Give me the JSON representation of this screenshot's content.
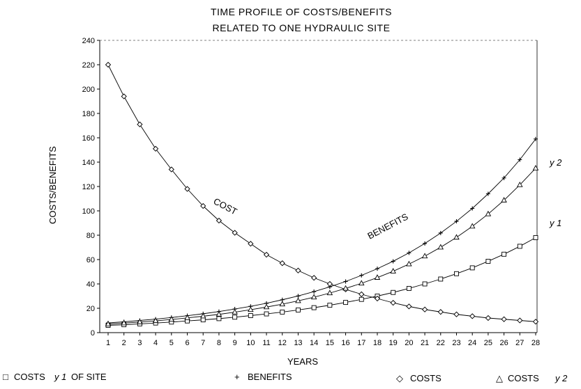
{
  "chart_data": {
    "type": "line",
    "title": [
      "TIME PROFILE OF COSTS/BENEFITS",
      "RELATED TO ONE HYDRAULIC SITE"
    ],
    "xlabel": "YEARS",
    "ylabel": "COSTS/BENEFITS",
    "xlim": [
      1,
      28
    ],
    "ylim": [
      0,
      240
    ],
    "x": [
      1,
      2,
      3,
      4,
      5,
      6,
      7,
      8,
      9,
      10,
      11,
      12,
      13,
      14,
      15,
      16,
      17,
      18,
      19,
      20,
      21,
      22,
      23,
      24,
      25,
      26,
      27,
      28
    ],
    "x_ticks": [
      "1",
      "2",
      "3",
      "4",
      "5",
      "6",
      "7",
      "8",
      "9",
      "10",
      "11",
      "12",
      "13",
      "14",
      "15",
      "16",
      "17",
      "18",
      "19",
      "20",
      "21",
      "22",
      "23",
      "24",
      "25",
      "26",
      "27",
      "28"
    ],
    "y_ticks": [
      "0",
      "20",
      "40",
      "60",
      "80",
      "100",
      "120",
      "140",
      "160",
      "180",
      "200",
      "220",
      "240"
    ],
    "y_tick_values": [
      0,
      20,
      40,
      60,
      80,
      100,
      120,
      140,
      160,
      180,
      200,
      220,
      240
    ],
    "grid": false,
    "legend_position": "bottom",
    "series": [
      {
        "name": "COSTS y 1 OF SITE",
        "marker": "square",
        "values": [
          6,
          6.5,
          7.2,
          7.9,
          8.7,
          9.6,
          10.5,
          11.5,
          12.7,
          14,
          15.4,
          16.9,
          18.6,
          20.5,
          22.5,
          24.8,
          27.3,
          30,
          33,
          36.3,
          40,
          44,
          48.4,
          53.2,
          58.6,
          64.4,
          70.9,
          78
        ]
      },
      {
        "name": "BENEFITS",
        "marker": "plus",
        "values": [
          8,
          8.9,
          10,
          11.1,
          12.4,
          13.9,
          15.5,
          17.3,
          19.4,
          21.6,
          24.1,
          27,
          30.1,
          33.7,
          37.6,
          42,
          47,
          52.5,
          58.6,
          65.5,
          73.2,
          81.8,
          91.4,
          102,
          114,
          127,
          142,
          159
        ]
      },
      {
        "name": "COSTS",
        "marker": "diamond",
        "values": [
          220,
          194,
          171,
          151,
          134,
          118,
          104,
          92,
          82,
          73,
          64,
          57,
          51,
          45,
          40,
          35.5,
          31.5,
          28,
          24.5,
          21.5,
          19,
          17,
          15,
          13.5,
          12,
          11,
          10,
          9
        ]
      },
      {
        "name": "COSTS y 2",
        "marker": "triangle",
        "values": [
          7,
          7.8,
          8.7,
          9.7,
          10.8,
          12.1,
          13.5,
          15,
          16.8,
          18.8,
          21,
          23.4,
          26.1,
          29.1,
          32.5,
          36.3,
          40.5,
          45.2,
          50.4,
          56.3,
          62.8,
          70.1,
          78.2,
          87.3,
          97.4,
          108.7,
          121.3,
          135
        ]
      }
    ],
    "annotations": [
      {
        "text": "COST",
        "series": "COSTS"
      },
      {
        "text": "BENEFITS",
        "series": "BENEFITS"
      },
      {
        "text": "y 2",
        "series": "COSTS y 2"
      },
      {
        "text": "y 1",
        "series": "COSTS y 1 OF SITE"
      }
    ],
    "legend": [
      {
        "symbol": "□",
        "text": "COSTS",
        "italic": "y 1",
        "suffix": "OF SITE"
      },
      {
        "symbol": "+",
        "text": "BENEFITS"
      },
      {
        "symbol": "◇",
        "text": "COSTS"
      },
      {
        "symbol": "△",
        "text": "COSTS",
        "italic": "y 2"
      }
    ]
  }
}
